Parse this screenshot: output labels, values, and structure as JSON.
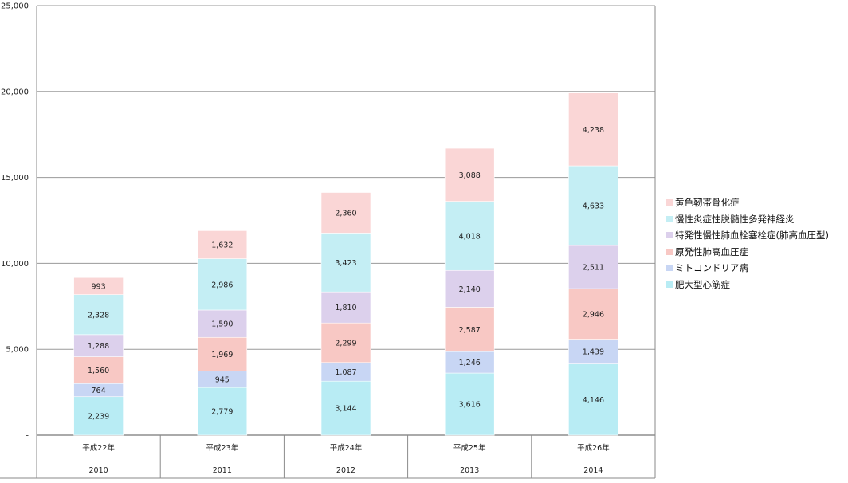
{
  "chart_data": {
    "type": "bar",
    "stacked": true,
    "categories": [
      "平成22年",
      "平成23年",
      "平成24年",
      "平成25年",
      "平成26年"
    ],
    "categories_sub": [
      "2010",
      "2011",
      "2012",
      "2013",
      "2014"
    ],
    "series": [
      {
        "name": "肥大型心筋症",
        "color": "#b8ecf4",
        "values": [
          2239,
          2779,
          3144,
          3616,
          4146
        ]
      },
      {
        "name": "ミトコンドリア病",
        "color": "#c8d6f4",
        "values": [
          764,
          945,
          1087,
          1246,
          1439
        ]
      },
      {
        "name": "原発性肺高血圧症",
        "color": "#f8c8c4",
        "values": [
          1560,
          1969,
          2299,
          2587,
          2946
        ]
      },
      {
        "name": "特発性慢性肺血栓塞栓症(肺高血圧型)",
        "color": "#dcd0ec",
        "values": [
          1288,
          1590,
          1810,
          2140,
          2511
        ]
      },
      {
        "name": "慢性炎症性脱髄性多発神経炎",
        "color": "#c4eef4",
        "values": [
          2328,
          2986,
          3423,
          4018,
          4633
        ]
      },
      {
        "name": "黄色靭帯骨化症",
        "color": "#fad6d6",
        "values": [
          993,
          1632,
          2360,
          3088,
          4238
        ]
      }
    ],
    "data_labels": [
      [
        "2,239",
        "2,779",
        "3,144",
        "3,616",
        "4,146"
      ],
      [
        "764",
        "945",
        "1,087",
        "1,246",
        "1,439"
      ],
      [
        "1,560",
        "1,969",
        "2,299",
        "2,587",
        "2,946"
      ],
      [
        "1,288",
        "1,590",
        "1,810",
        "2,140",
        "2,511"
      ],
      [
        "2,328",
        "2,986",
        "3,423",
        "4,018",
        "4,633"
      ],
      [
        "993",
        "1,632",
        "2,360",
        "3,088",
        "4,238"
      ]
    ],
    "y_ticks": [
      0,
      5000,
      10000,
      15000,
      20000,
      25000
    ],
    "y_tick_labels": [
      "-",
      "5,000",
      "10,000",
      "15,000",
      "20,000",
      "25,000"
    ],
    "ylim": [
      0,
      25000
    ],
    "grid": true,
    "legend_position": "right",
    "legend_order": "reverse"
  }
}
